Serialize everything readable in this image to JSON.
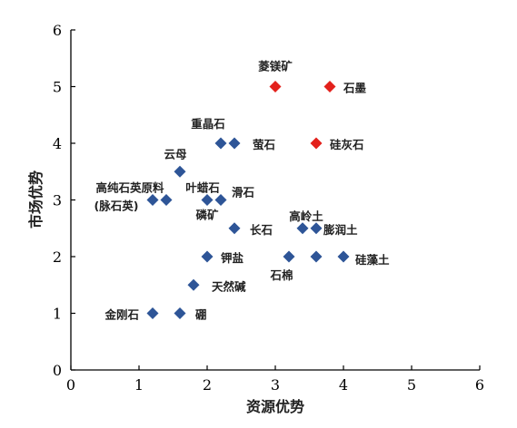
{
  "chart_data": {
    "type": "scatter",
    "title": "",
    "xlabel": "资源优势",
    "ylabel": "市场优势",
    "xlim": [
      0,
      6
    ],
    "ylim": [
      0,
      6
    ],
    "x_ticks": [
      "0",
      "1",
      "2",
      "3",
      "4",
      "5",
      "6"
    ],
    "y_ticks": [
      "0",
      "1",
      "2",
      "3",
      "4",
      "5",
      "6"
    ],
    "grid": false,
    "colors": {
      "normal": "#2e5597",
      "highlight": "#e3211c"
    },
    "points": [
      {
        "x": 3.0,
        "y": 5.0,
        "highlight": true
      },
      {
        "x": 3.8,
        "y": 5.0,
        "highlight": true
      },
      {
        "x": 3.6,
        "y": 4.0,
        "highlight": true
      },
      {
        "x": 2.2,
        "y": 4.0,
        "highlight": false
      },
      {
        "x": 2.4,
        "y": 4.0,
        "highlight": false
      },
      {
        "x": 1.6,
        "y": 3.5,
        "highlight": false
      },
      {
        "x": 1.2,
        "y": 3.0,
        "highlight": false
      },
      {
        "x": 1.4,
        "y": 3.0,
        "highlight": false
      },
      {
        "x": 2.0,
        "y": 3.0,
        "highlight": false
      },
      {
        "x": 2.2,
        "y": 3.0,
        "highlight": false
      },
      {
        "x": 2.4,
        "y": 2.5,
        "highlight": false
      },
      {
        "x": 3.4,
        "y": 2.5,
        "highlight": false
      },
      {
        "x": 3.6,
        "y": 2.5,
        "highlight": false
      },
      {
        "x": 2.0,
        "y": 2.0,
        "highlight": false
      },
      {
        "x": 3.2,
        "y": 2.0,
        "highlight": false
      },
      {
        "x": 3.6,
        "y": 2.0,
        "highlight": false
      },
      {
        "x": 4.0,
        "y": 2.0,
        "highlight": false
      },
      {
        "x": 1.8,
        "y": 1.5,
        "highlight": false
      },
      {
        "x": 1.2,
        "y": 1.0,
        "highlight": false
      },
      {
        "x": 1.6,
        "y": 1.0,
        "highlight": false
      }
    ],
    "annotations": [
      {
        "text": "菱镁矿",
        "x": 3.0,
        "y": 5.0
      },
      {
        "text": "石墨",
        "x": 3.8,
        "y": 5.0
      },
      {
        "text": "硅灰石",
        "x": 3.6,
        "y": 4.0
      },
      {
        "text": "重晶石",
        "x": 2.2,
        "y": 4.0
      },
      {
        "text": "萤石",
        "x": 2.4,
        "y": 4.0
      },
      {
        "text": "云母",
        "x": 1.6,
        "y": 3.5
      },
      {
        "text": "高纯石英原料",
        "x": 1.2,
        "y": 3.0
      },
      {
        "text": "(脉石英)",
        "x": 1.2,
        "y": 3.0
      },
      {
        "text": "叶蜡石",
        "x": 2.0,
        "y": 3.0
      },
      {
        "text": "滑石",
        "x": 2.2,
        "y": 3.0
      },
      {
        "text": "磷矿",
        "x": 2.0,
        "y": 3.0
      },
      {
        "text": "长石",
        "x": 2.4,
        "y": 2.5
      },
      {
        "text": "高岭土",
        "x": 3.4,
        "y": 2.5
      },
      {
        "text": "膨润土",
        "x": 3.6,
        "y": 2.5
      },
      {
        "text": "钾盐",
        "x": 2.0,
        "y": 2.0
      },
      {
        "text": "石棉",
        "x": 3.2,
        "y": 2.0
      },
      {
        "text": "硅藻土",
        "x": 4.0,
        "y": 2.0
      },
      {
        "text": "天然碱",
        "x": 1.8,
        "y": 1.5
      },
      {
        "text": "金刚石",
        "x": 1.2,
        "y": 1.0
      },
      {
        "text": "硼",
        "x": 1.6,
        "y": 1.0
      }
    ]
  }
}
